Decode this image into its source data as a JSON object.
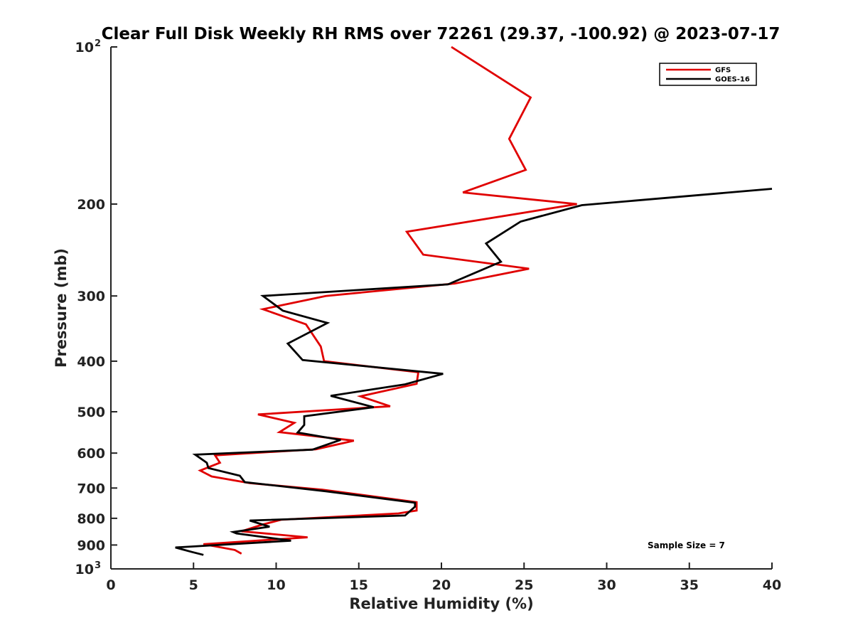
{
  "chart_data": {
    "type": "line",
    "title": "Clear Full Disk Weekly RH RMS over 72261 (29.37, -100.92) @ 2023-07-17",
    "xlabel": "Relative Humidity (%)",
    "ylabel": "Pressure (mb)",
    "xlim": [
      0,
      40
    ],
    "ylim": [
      100,
      1000
    ],
    "y_scale": "log",
    "y_reversed": true,
    "grid": false,
    "legend_position": "top-right",
    "x_ticks": [
      "0",
      "5",
      "10",
      "15",
      "20",
      "25",
      "30",
      "35",
      "40"
    ],
    "y_ticks": [
      {
        "value": 100,
        "label": "10",
        "sup": "2"
      },
      {
        "value": 200,
        "label": "200",
        "sup": ""
      },
      {
        "value": 300,
        "label": "300",
        "sup": ""
      },
      {
        "value": 400,
        "label": "400",
        "sup": ""
      },
      {
        "value": 500,
        "label": "500",
        "sup": ""
      },
      {
        "value": 600,
        "label": "600",
        "sup": ""
      },
      {
        "value": 700,
        "label": "700",
        "sup": ""
      },
      {
        "value": 800,
        "label": "800",
        "sup": ""
      },
      {
        "value": 900,
        "label": "900",
        "sup": ""
      },
      {
        "value": 1000,
        "label": "10",
        "sup": "3"
      }
    ],
    "annotation": "Sample Size = 7",
    "series": [
      {
        "name": "GFS",
        "color": "#e00000",
        "points": [
          [
            20.6,
            100
          ],
          [
            25.4,
            125
          ],
          [
            24.1,
            150
          ],
          [
            25.1,
            172
          ],
          [
            21.3,
            190
          ],
          [
            28.2,
            200
          ],
          [
            17.9,
            226
          ],
          [
            18.9,
            250
          ],
          [
            25.3,
            266
          ],
          [
            20.8,
            284
          ],
          [
            13.0,
            300
          ],
          [
            9.2,
            318
          ],
          [
            11.8,
            340
          ],
          [
            12.7,
            375
          ],
          [
            12.9,
            400
          ],
          [
            18.6,
            420
          ],
          [
            18.5,
            442
          ],
          [
            15.1,
            467
          ],
          [
            16.9,
            488
          ],
          [
            8.9,
            506
          ],
          [
            11.1,
            525
          ],
          [
            10.2,
            547
          ],
          [
            14.7,
            568
          ],
          [
            12.4,
            590
          ],
          [
            6.3,
            606
          ],
          [
            6.6,
            626
          ],
          [
            5.4,
            648
          ],
          [
            6.1,
            665
          ],
          [
            8.4,
            685
          ],
          [
            12.8,
            705
          ],
          [
            18.5,
            745
          ],
          [
            18.5,
            773
          ],
          [
            17.4,
            783
          ],
          [
            10.3,
            805
          ],
          [
            9.2,
            822
          ],
          [
            7.9,
            847
          ],
          [
            11.9,
            870
          ],
          [
            5.6,
            897
          ],
          [
            7.5,
            920
          ],
          [
            7.9,
            935
          ]
        ]
      },
      {
        "name": "GOES-16",
        "color": "#000000",
        "points": [
          [
            40.0,
            187
          ],
          [
            28.5,
            201
          ],
          [
            24.8,
            216
          ],
          [
            22.7,
            238
          ],
          [
            23.6,
            258
          ],
          [
            20.4,
            285
          ],
          [
            9.2,
            300
          ],
          [
            10.4,
            320
          ],
          [
            13.1,
            338
          ],
          [
            10.7,
            370
          ],
          [
            11.6,
            398
          ],
          [
            20.1,
            423
          ],
          [
            17.8,
            443
          ],
          [
            13.3,
            466
          ],
          [
            15.9,
            490
          ],
          [
            11.7,
            510
          ],
          [
            11.7,
            530
          ],
          [
            11.3,
            548
          ],
          [
            13.9,
            566
          ],
          [
            12.2,
            591
          ],
          [
            5.1,
            604
          ],
          [
            5.8,
            626
          ],
          [
            5.9,
            641
          ],
          [
            7.8,
            663
          ],
          [
            8.1,
            682
          ],
          [
            13.0,
            710
          ],
          [
            18.4,
            747
          ],
          [
            18.4,
            760
          ],
          [
            17.8,
            790
          ],
          [
            8.4,
            808
          ],
          [
            9.6,
            830
          ],
          [
            7.4,
            850
          ],
          [
            7.6,
            855
          ],
          [
            10.9,
            883
          ],
          [
            3.9,
            910
          ],
          [
            4.9,
            928
          ],
          [
            5.6,
            940
          ]
        ]
      }
    ]
  }
}
